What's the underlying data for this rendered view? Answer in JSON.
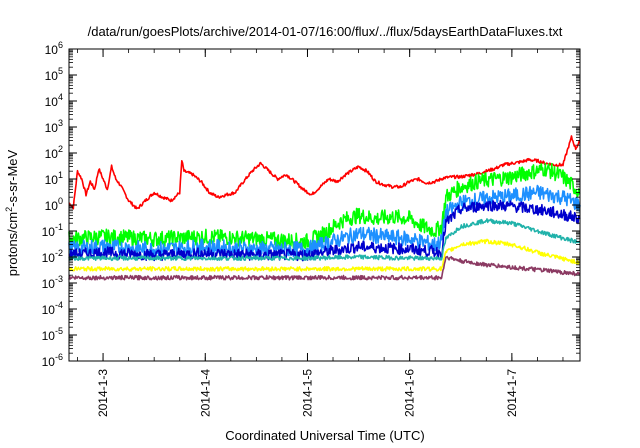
{
  "chart_data": {
    "type": "line",
    "title": "/data/run/goesPlots/archive/2014-01-07/16:00/flux/../flux/5daysEarthDataFluxes.txt",
    "xlabel": "Coordinated Universal Time (UTC)",
    "ylabel_parts": {
      "base": "protons/cm",
      "sup": "2",
      "rest": "-s-sr-MeV"
    },
    "y_scale": "log",
    "ylim": [
      1e-06,
      1000000.0
    ],
    "y_ticks": [
      {
        "value": 1e-06,
        "base": "10",
        "exp": "-6"
      },
      {
        "value": 1e-05,
        "base": "10",
        "exp": "-5"
      },
      {
        "value": 0.0001,
        "base": "10",
        "exp": "-4"
      },
      {
        "value": 0.001,
        "base": "10",
        "exp": "-3"
      },
      {
        "value": 0.01,
        "base": "10",
        "exp": "-2"
      },
      {
        "value": 0.1,
        "base": "10",
        "exp": "-1"
      },
      {
        "value": 1.0,
        "base": "10",
        "exp": "0"
      },
      {
        "value": 10.0,
        "base": "10",
        "exp": "1"
      },
      {
        "value": 100.0,
        "base": "10",
        "exp": "2"
      },
      {
        "value": 1000.0,
        "base": "10",
        "exp": "3"
      },
      {
        "value": 10000.0,
        "base": "10",
        "exp": "4"
      },
      {
        "value": 100000.0,
        "base": "10",
        "exp": "5"
      },
      {
        "value": 1000000.0,
        "base": "10",
        "exp": "6"
      }
    ],
    "x_range": [
      "2014-01-02 16:00",
      "2014-01-07 16:00"
    ],
    "x_ticks": [
      {
        "value": "2014-01-03 00:00",
        "label": "2014-1-3"
      },
      {
        "value": "2014-01-04 00:00",
        "label": "2014-1-4"
      },
      {
        "value": "2014-01-05 00:00",
        "label": "2014-1-5"
      },
      {
        "value": "2014-01-06 00:00",
        "label": "2014-1-6"
      },
      {
        "value": "2014-01-07 00:00",
        "label": "2014-1-7"
      }
    ],
    "grid": false,
    "legend": "none",
    "series": [
      {
        "color": "#ff0000",
        "points": [
          [
            "2014-01-02 16:00",
            1.2
          ],
          [
            "2014-01-02 17:00",
            0.8
          ],
          [
            "2014-01-02 18:00",
            20
          ],
          [
            "2014-01-02 19:00",
            10
          ],
          [
            "2014-01-02 20:00",
            2.5
          ],
          [
            "2014-01-02 21:00",
            8
          ],
          [
            "2014-01-02 22:00",
            4
          ],
          [
            "2014-01-02 23:00",
            25
          ],
          [
            "2014-01-03 00:00",
            10
          ],
          [
            "2014-01-03 01:00",
            4
          ],
          [
            "2014-01-03 02:00",
            30
          ],
          [
            "2014-01-03 03:00",
            10
          ],
          [
            "2014-01-03 04:00",
            6
          ],
          [
            "2014-01-03 05:00",
            3
          ],
          [
            "2014-01-03 06:00",
            1.5
          ],
          [
            "2014-01-03 08:00",
            0.7
          ],
          [
            "2014-01-03 10:00",
            1.5
          ],
          [
            "2014-01-03 12:00",
            3
          ],
          [
            "2014-01-03 14:00",
            2
          ],
          [
            "2014-01-03 16:00",
            1.5
          ],
          [
            "2014-01-03 18:00",
            3
          ],
          [
            "2014-01-03 18:30",
            50
          ],
          [
            "2014-01-03 19:00",
            20
          ],
          [
            "2014-01-03 21:00",
            15
          ],
          [
            "2014-01-03 23:00",
            8
          ],
          [
            "2014-01-04 01:00",
            3
          ],
          [
            "2014-01-04 03:00",
            2
          ],
          [
            "2014-01-04 05:00",
            2.5
          ],
          [
            "2014-01-04 07:00",
            3
          ],
          [
            "2014-01-04 09:00",
            8
          ],
          [
            "2014-01-04 11:00",
            20
          ],
          [
            "2014-01-04 13:00",
            40
          ],
          [
            "2014-01-04 15:00",
            20
          ],
          [
            "2014-01-04 17:00",
            10
          ],
          [
            "2014-01-04 19:00",
            15
          ],
          [
            "2014-01-04 21:00",
            8
          ],
          [
            "2014-01-04 23:00",
            4
          ],
          [
            "2014-01-05 01:00",
            2.5
          ],
          [
            "2014-01-05 03:00",
            5
          ],
          [
            "2014-01-05 05:00",
            10
          ],
          [
            "2014-01-05 07:00",
            8
          ],
          [
            "2014-01-05 09:00",
            15
          ],
          [
            "2014-01-05 12:00",
            30
          ],
          [
            "2014-01-05 14:00",
            20
          ],
          [
            "2014-01-05 16:00",
            8
          ],
          [
            "2014-01-05 18:00",
            6
          ],
          [
            "2014-01-05 20:00",
            5
          ],
          [
            "2014-01-05 22:00",
            5
          ],
          [
            "2014-01-06 00:00",
            8
          ],
          [
            "2014-01-06 02:00",
            10
          ],
          [
            "2014-01-06 04:00",
            7
          ],
          [
            "2014-01-06 06:00",
            8
          ],
          [
            "2014-01-06 08:00",
            11
          ],
          [
            "2014-01-06 10:00",
            12
          ],
          [
            "2014-01-06 12:00",
            12
          ],
          [
            "2014-01-06 14:00",
            14
          ],
          [
            "2014-01-06 16:00",
            16
          ],
          [
            "2014-01-06 18:00",
            20
          ],
          [
            "2014-01-06 20:00",
            25
          ],
          [
            "2014-01-06 22:00",
            35
          ],
          [
            "2014-01-07 00:00",
            40
          ],
          [
            "2014-01-07 02:00",
            45
          ],
          [
            "2014-01-07 04:00",
            55
          ],
          [
            "2014-01-07 06:00",
            50
          ],
          [
            "2014-01-07 08:00",
            40
          ],
          [
            "2014-01-07 10:00",
            35
          ],
          [
            "2014-01-07 12:00",
            35
          ],
          [
            "2014-01-07 13:00",
            120
          ],
          [
            "2014-01-07 14:00",
            400
          ],
          [
            "2014-01-07 15:00",
            150
          ],
          [
            "2014-01-07 16:00",
            300
          ]
        ]
      },
      {
        "color": "#00ff00",
        "points": [
          [
            "2014-01-02 16:00",
            0.05
          ],
          [
            "2014-01-03 00:00",
            0.06
          ],
          [
            "2014-01-03 12:00",
            0.05
          ],
          [
            "2014-01-04 00:00",
            0.06
          ],
          [
            "2014-01-04 12:00",
            0.05
          ],
          [
            "2014-01-05 00:00",
            0.04
          ],
          [
            "2014-01-05 04:00",
            0.08
          ],
          [
            "2014-01-05 08:00",
            0.25
          ],
          [
            "2014-01-05 12:00",
            0.4
          ],
          [
            "2014-01-05 16:00",
            0.3
          ],
          [
            "2014-01-05 20:00",
            0.35
          ],
          [
            "2014-01-06 00:00",
            0.3
          ],
          [
            "2014-01-06 03:00",
            0.15
          ],
          [
            "2014-01-06 06:00",
            0.1
          ],
          [
            "2014-01-06 07:30",
            0.15
          ],
          [
            "2014-01-06 08:30",
            2
          ],
          [
            "2014-01-06 12:00",
            5
          ],
          [
            "2014-01-06 16:00",
            8
          ],
          [
            "2014-01-06 20:00",
            10
          ],
          [
            "2014-01-07 00:00",
            12
          ],
          [
            "2014-01-07 04:00",
            18
          ],
          [
            "2014-01-07 08:00",
            25
          ],
          [
            "2014-01-07 12:00",
            12
          ],
          [
            "2014-01-07 16:00",
            3
          ]
        ]
      },
      {
        "color": "#1e90ff",
        "points": [
          [
            "2014-01-02 16:00",
            0.02
          ],
          [
            "2014-01-03 00:00",
            0.025
          ],
          [
            "2014-01-03 12:00",
            0.02
          ],
          [
            "2014-01-04 00:00",
            0.025
          ],
          [
            "2014-01-04 12:00",
            0.02
          ],
          [
            "2014-01-05 00:00",
            0.02
          ],
          [
            "2014-01-05 06:00",
            0.04
          ],
          [
            "2014-01-05 12:00",
            0.08
          ],
          [
            "2014-01-05 18:00",
            0.06
          ],
          [
            "2014-01-06 00:00",
            0.05
          ],
          [
            "2014-01-06 06:00",
            0.03
          ],
          [
            "2014-01-06 07:30",
            0.04
          ],
          [
            "2014-01-06 08:30",
            0.5
          ],
          [
            "2014-01-06 12:00",
            1.2
          ],
          [
            "2014-01-06 18:00",
            1.8
          ],
          [
            "2014-01-07 00:00",
            2.2
          ],
          [
            "2014-01-07 06:00",
            3
          ],
          [
            "2014-01-07 12:00",
            2
          ],
          [
            "2014-01-07 16:00",
            1
          ]
        ]
      },
      {
        "color": "#0000cd",
        "points": [
          [
            "2014-01-02 16:00",
            0.012
          ],
          [
            "2014-01-03 00:00",
            0.015
          ],
          [
            "2014-01-03 12:00",
            0.012
          ],
          [
            "2014-01-04 00:00",
            0.014
          ],
          [
            "2014-01-04 12:00",
            0.012
          ],
          [
            "2014-01-05 00:00",
            0.012
          ],
          [
            "2014-01-05 12:00",
            0.025
          ],
          [
            "2014-01-06 00:00",
            0.02
          ],
          [
            "2014-01-06 07:30",
            0.015
          ],
          [
            "2014-01-06 08:30",
            0.2
          ],
          [
            "2014-01-06 12:00",
            0.7
          ],
          [
            "2014-01-06 18:00",
            1
          ],
          [
            "2014-01-07 00:00",
            0.9
          ],
          [
            "2014-01-07 08:00",
            0.6
          ],
          [
            "2014-01-07 16:00",
            0.3
          ]
        ]
      },
      {
        "color": "#20b2aa",
        "points": [
          [
            "2014-01-02 16:00",
            0.009
          ],
          [
            "2014-01-04 00:00",
            0.009
          ],
          [
            "2014-01-05 00:00",
            0.009
          ],
          [
            "2014-01-05 12:00",
            0.01
          ],
          [
            "2014-01-06 00:00",
            0.009
          ],
          [
            "2014-01-06 07:30",
            0.009
          ],
          [
            "2014-01-06 08:30",
            0.05
          ],
          [
            "2014-01-06 12:00",
            0.15
          ],
          [
            "2014-01-06 18:00",
            0.25
          ],
          [
            "2014-01-07 00:00",
            0.2
          ],
          [
            "2014-01-07 08:00",
            0.08
          ],
          [
            "2014-01-07 16:00",
            0.035
          ]
        ]
      },
      {
        "color": "#ffff00",
        "points": [
          [
            "2014-01-02 16:00",
            0.0035
          ],
          [
            "2014-01-04 00:00",
            0.0035
          ],
          [
            "2014-01-05 00:00",
            0.0035
          ],
          [
            "2014-01-06 00:00",
            0.0035
          ],
          [
            "2014-01-06 07:30",
            0.0035
          ],
          [
            "2014-01-06 08:30",
            0.015
          ],
          [
            "2014-01-06 12:00",
            0.03
          ],
          [
            "2014-01-06 18:00",
            0.04
          ],
          [
            "2014-01-07 00:00",
            0.03
          ],
          [
            "2014-01-07 08:00",
            0.012
          ],
          [
            "2014-01-07 16:00",
            0.006
          ]
        ]
      },
      {
        "color": "#8b3a62",
        "points": [
          [
            "2014-01-02 16:00",
            0.0016
          ],
          [
            "2014-01-04 00:00",
            0.0016
          ],
          [
            "2014-01-05 00:00",
            0.0016
          ],
          [
            "2014-01-06 00:00",
            0.0016
          ],
          [
            "2014-01-06 07:30",
            0.0016
          ],
          [
            "2014-01-06 08:30",
            0.01
          ],
          [
            "2014-01-06 12:00",
            0.007
          ],
          [
            "2014-01-06 18:00",
            0.005
          ],
          [
            "2014-01-07 00:00",
            0.004
          ],
          [
            "2014-01-07 08:00",
            0.003
          ],
          [
            "2014-01-07 16:00",
            0.0022
          ]
        ]
      }
    ]
  }
}
